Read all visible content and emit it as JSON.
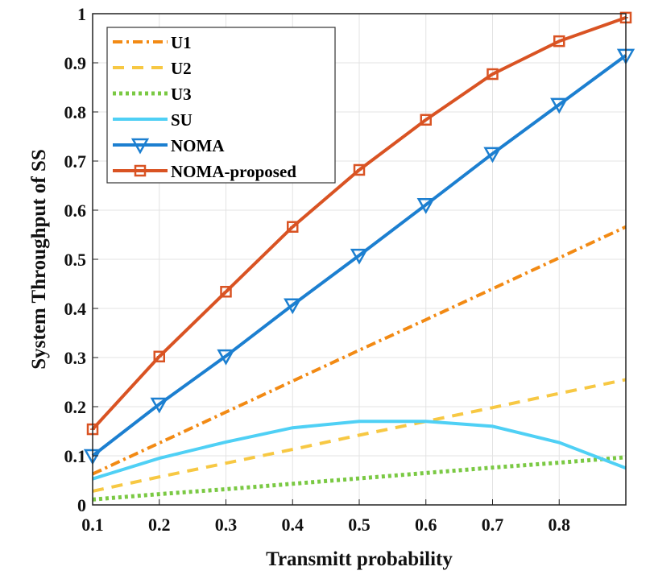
{
  "chart_data": {
    "type": "line",
    "title": "",
    "xlabel": "Transmitt probability",
    "ylabel": "System Throughput of SS",
    "xlim": [
      0.1,
      0.9
    ],
    "ylim": [
      0,
      1
    ],
    "grid": true,
    "legend_position": "top-left",
    "x": [
      0.1,
      0.2,
      0.3,
      0.4,
      0.5,
      0.6,
      0.7,
      0.8,
      0.9
    ],
    "xtick_labels": [
      "0.1",
      "0.2",
      "0.3",
      "0.4",
      "0.5",
      "0.6",
      "0.7",
      "0.8"
    ],
    "ytick_labels": [
      "0",
      "0.1",
      "0.2",
      "0.3",
      "0.4",
      "0.5",
      "0.6",
      "0.7",
      "0.8",
      "0.9",
      "1"
    ],
    "series": [
      {
        "name": "U1",
        "color": "#F28A14",
        "style": "dashdot",
        "marker": "none",
        "values": [
          0.063,
          0.126,
          0.189,
          0.252,
          0.315,
          0.377,
          0.44,
          0.503,
          0.566
        ]
      },
      {
        "name": "U2",
        "color": "#F7C843",
        "style": "dashed",
        "marker": "none",
        "values": [
          0.028,
          0.057,
          0.085,
          0.113,
          0.142,
          0.17,
          0.198,
          0.227,
          0.255
        ]
      },
      {
        "name": "U3",
        "color": "#7AC943",
        "style": "dotted",
        "marker": "none",
        "values": [
          0.011,
          0.022,
          0.032,
          0.043,
          0.054,
          0.065,
          0.076,
          0.086,
          0.097
        ]
      },
      {
        "name": "SU",
        "color": "#4FD0F5",
        "style": "solid",
        "marker": "none",
        "values": [
          0.053,
          0.095,
          0.128,
          0.157,
          0.17,
          0.17,
          0.16,
          0.127,
          0.075
        ]
      },
      {
        "name": "NOMA",
        "color": "#1C7FD0",
        "style": "solid",
        "marker": "triangle-down",
        "values": [
          0.1,
          0.205,
          0.303,
          0.407,
          0.508,
          0.611,
          0.715,
          0.815,
          0.915
        ]
      },
      {
        "name": "NOMA-proposed",
        "color": "#D95323",
        "style": "solid",
        "marker": "square",
        "values": [
          0.154,
          0.302,
          0.434,
          0.566,
          0.682,
          0.784,
          0.877,
          0.944,
          0.992
        ]
      }
    ]
  }
}
